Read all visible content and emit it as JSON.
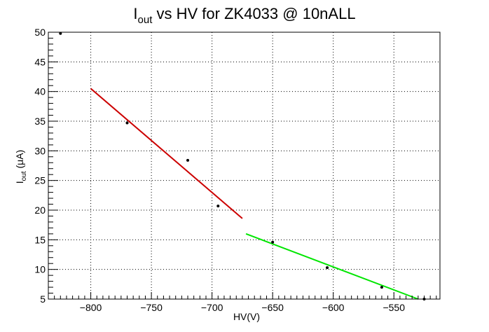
{
  "chart_data": {
    "type": "scatter",
    "title": "I",
    "title_sub": "out",
    "title_rest": " vs HV for ZK4033 @ 10nALL",
    "xlabel": "HV(V)",
    "ylabel_main": "I",
    "ylabel_sub": "out",
    "ylabel_rest": " (μA)",
    "xlim": [
      -835,
      -512
    ],
    "ylim": [
      5,
      50
    ],
    "xticks": [
      -800,
      -750,
      -700,
      -650,
      -600,
      -550
    ],
    "xtick_labels": [
      "−800",
      "−750",
      "−700",
      "−650",
      "−600",
      "−550"
    ],
    "yticks": [
      5,
      10,
      15,
      20,
      25,
      30,
      35,
      40,
      45,
      50
    ],
    "ytick_labels": [
      "5",
      "10",
      "15",
      "20",
      "25",
      "30",
      "35",
      "40",
      "45",
      "50"
    ],
    "grid": true,
    "points": {
      "x": [
        -825,
        -770,
        -720,
        -695,
        -650,
        -605,
        -560,
        -525
      ],
      "y": [
        49.8,
        34.7,
        28.4,
        20.7,
        14.6,
        10.3,
        7.0,
        5.0
      ]
    },
    "fits": [
      {
        "color": "#cc0000",
        "x": [
          -800,
          -675
        ],
        "y": [
          40.5,
          18.6
        ]
      },
      {
        "color": "#00e600",
        "x": [
          -672,
          -530
        ],
        "y": [
          16.0,
          5.0
        ]
      }
    ],
    "colors": {
      "points": "#000000",
      "grid": "#000000",
      "axis": "#000000"
    }
  }
}
